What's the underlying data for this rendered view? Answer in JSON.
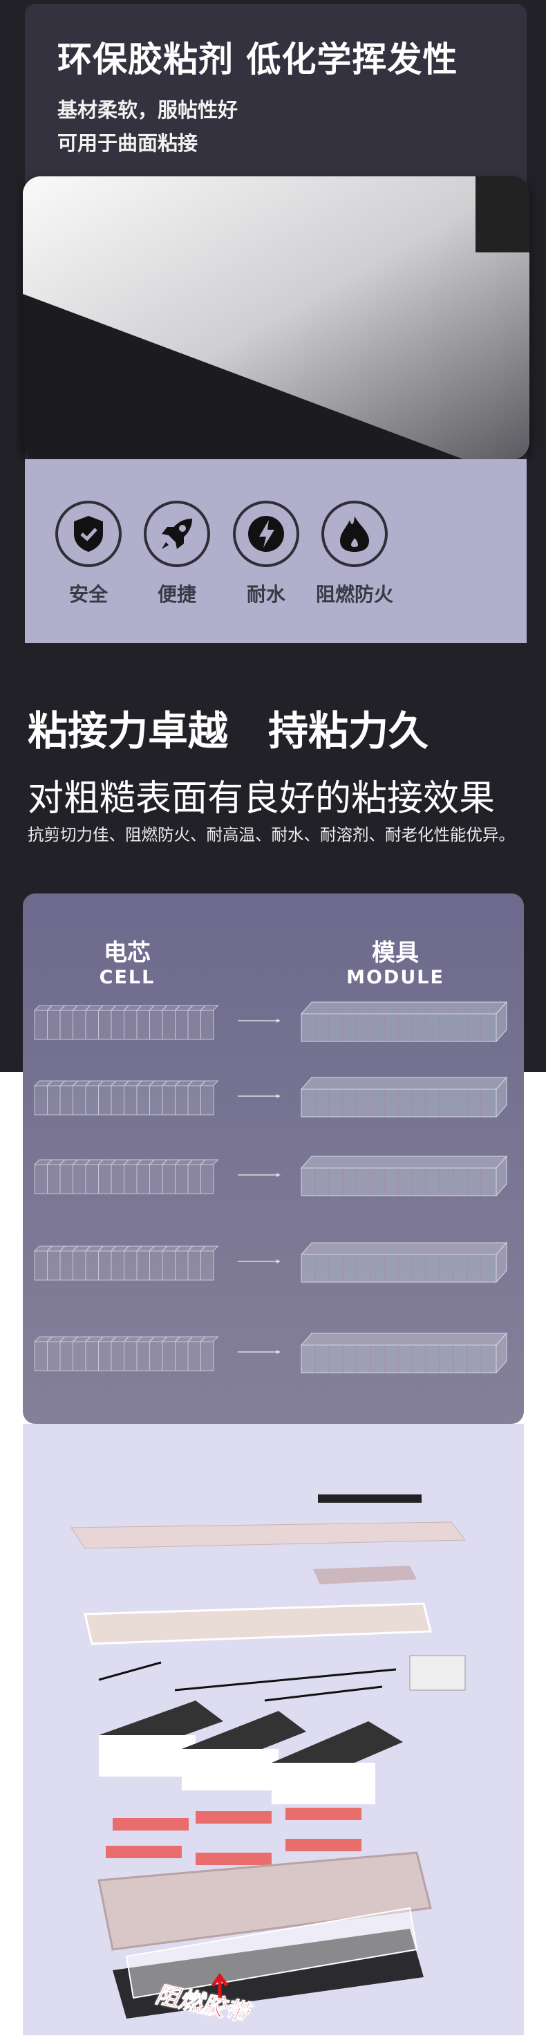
{
  "section1": {
    "title": "环保胶粘剂 低化学挥发性",
    "lines": [
      "基材柔软，服帖性好",
      "可用于曲面粘接"
    ],
    "features": [
      {
        "icon": "shield-check-icon",
        "label": "安全"
      },
      {
        "icon": "rocket-icon",
        "label": "便捷"
      },
      {
        "icon": "lightning-icon",
        "label": "耐水"
      },
      {
        "icon": "flame-icon",
        "label": "阻燃防火"
      }
    ]
  },
  "section2": {
    "title": "粘接力卓越　持粘力久",
    "subtitle": "对粗糙表面有良好的粘接效果",
    "desc": "抗剪切力佳、阻燃防火、耐高温、耐水、耐溶剂、耐老化性能优异。"
  },
  "diagram": {
    "left_cn": "电芯",
    "left_en": "CELL",
    "right_cn": "模具",
    "right_en": "MODULE"
  },
  "pack": {
    "tag": "阻燃胶带",
    "tag_color": "#e0141b"
  },
  "colors": {
    "dark": "#222127",
    "card": "#34323e",
    "lavender": "#b1afcc",
    "panel": "#6d6a8d"
  }
}
